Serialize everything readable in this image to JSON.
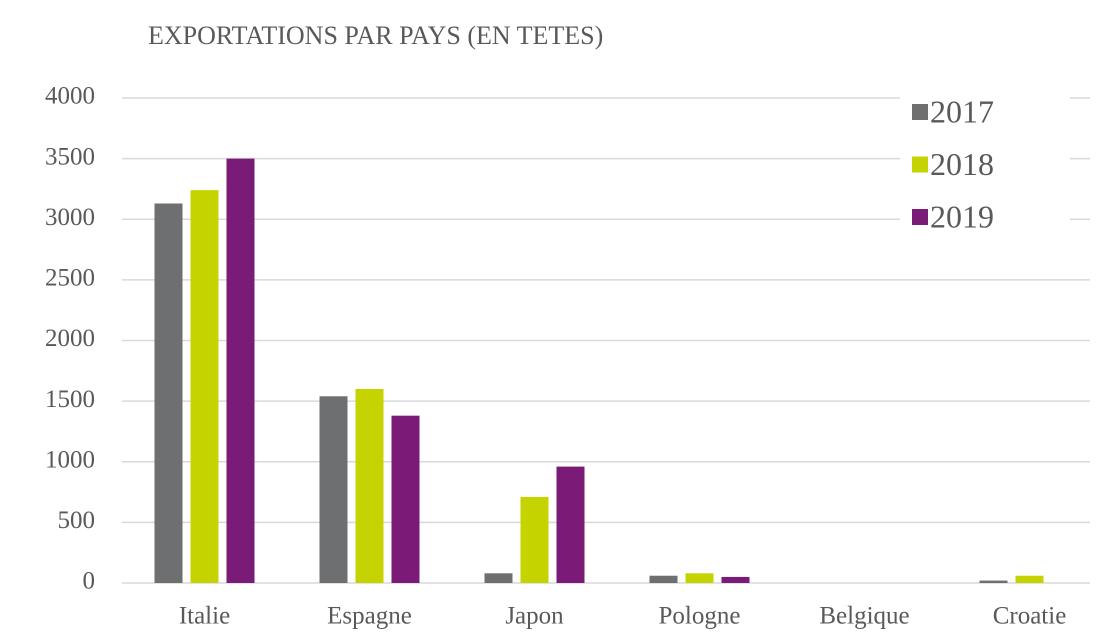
{
  "chart_data": {
    "type": "bar",
    "title": "EXPORTATIONS PAR PAYS (EN TETES)",
    "categories": [
      "Italie",
      "Espagne",
      "Japon",
      "Pologne",
      "Belgique",
      "Croatie"
    ],
    "series": [
      {
        "name": "2017",
        "color": "#6d6f70",
        "values": [
          3130,
          1540,
          80,
          60,
          0,
          20
        ]
      },
      {
        "name": "2018",
        "color": "#c5d300",
        "values": [
          3240,
          1600,
          710,
          80,
          0,
          60
        ]
      },
      {
        "name": "2019",
        "color": "#7a1b77",
        "values": [
          3500,
          1380,
          960,
          50,
          0,
          0
        ]
      }
    ],
    "ylim": [
      0,
      4000
    ],
    "yticks": [
      0,
      500,
      1000,
      1500,
      2000,
      2500,
      3000,
      3500,
      4000
    ],
    "grid": true,
    "legend": "top-right"
  }
}
